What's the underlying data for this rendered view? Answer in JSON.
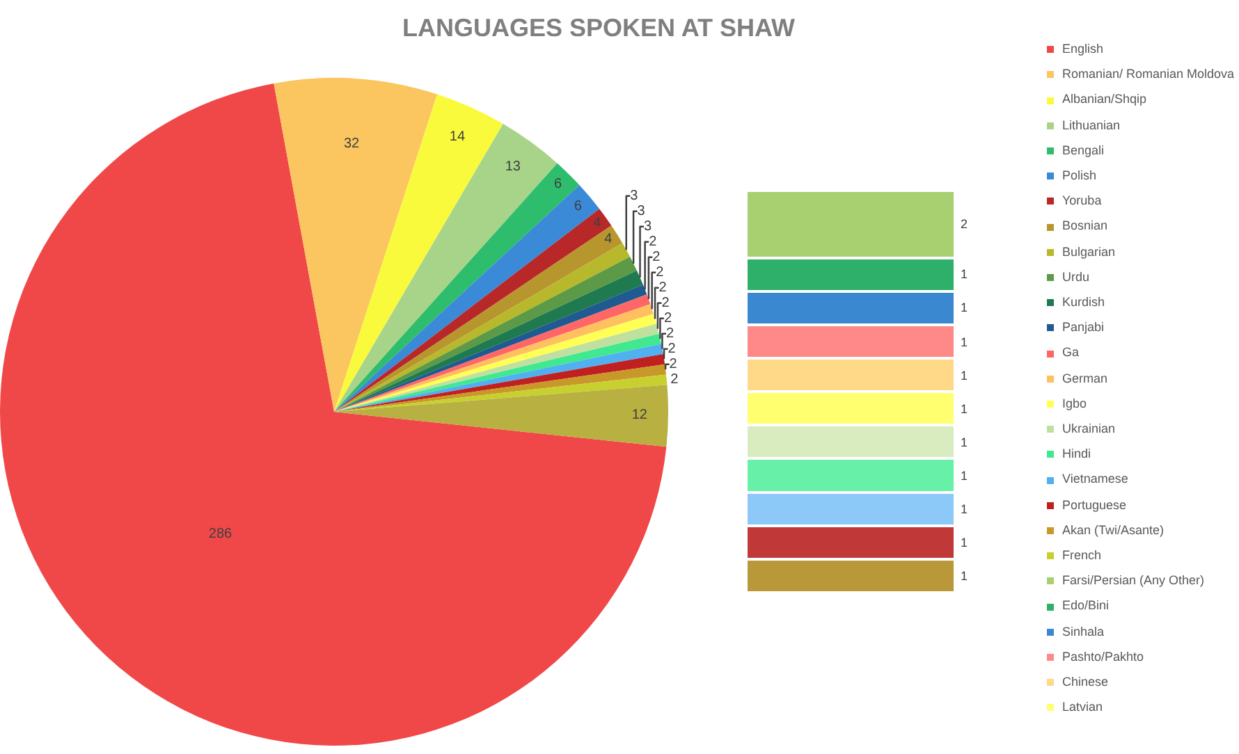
{
  "chart_data": [
    {
      "type": "pie",
      "title": "LANGUAGES SPOKEN AT SHAW",
      "legend": "right",
      "data_labels": true,
      "categories": [
        "English",
        "Romanian/ Romanian Moldova",
        "Albanian/Shqip",
        "Lithuanian",
        "Bengali",
        "Polish",
        "Yoruba",
        "Bosnian",
        "Bulgarian",
        "Urdu",
        "Kurdish",
        "Panjabi",
        "Ga",
        "German",
        "Igbo",
        "Ukrainian",
        "Hindi",
        "Vietnamese",
        "Portuguese",
        "Akan (Twi/Asante)",
        "French",
        null
      ],
      "values": [
        286,
        32,
        14,
        13,
        6,
        6,
        4,
        4,
        3,
        3,
        3,
        2,
        2,
        2,
        2,
        2,
        2,
        2,
        2,
        2,
        2,
        12
      ],
      "colors": [
        "#f04848",
        "#fbc560",
        "#fafa3c",
        "#a8d48a",
        "#2ebd6c",
        "#3a8ad8",
        "#b82828",
        "#b8962e",
        "#b8b82c",
        "#5c9a48",
        "#1f7a50",
        "#1f5a90",
        "#ff6666",
        "#ffc060",
        "#ffff55",
        "#c0e0a0",
        "#40e890",
        "#50b0f0",
        "#c02020",
        "#c89828",
        "#c8d030",
        "#b8b040"
      ]
    },
    {
      "type": "bar",
      "stacked": true,
      "data_labels": true,
      "legend": "right",
      "categories": [
        null
      ],
      "series": [
        {
          "color": "#b89838",
          "values": [
            1
          ]
        },
        {
          "color": "#c03838",
          "values": [
            1
          ]
        },
        {
          "color": "#8cc8f8",
          "values": [
            1
          ]
        },
        {
          "color": "#66f0a8",
          "values": [
            1
          ]
        },
        {
          "color": "#d8ecc0",
          "values": [
            1
          ]
        },
        {
          "name": "Latvian",
          "color": "#ffff70",
          "values": [
            1
          ]
        },
        {
          "name": "Chinese",
          "color": "#ffd888",
          "values": [
            1
          ]
        },
        {
          "name": "Pashto/Pakhto",
          "color": "#ff8888",
          "values": [
            1
          ]
        },
        {
          "name": "Sinhala",
          "color": "#3a88d0",
          "values": [
            1
          ]
        },
        {
          "name": "Edo/Bini",
          "color": "#2eb06a",
          "values": [
            1
          ]
        },
        {
          "name": "Farsi/Persian (Any Other)",
          "color": "#a8d070",
          "values": [
            2
          ]
        }
      ]
    }
  ]
}
